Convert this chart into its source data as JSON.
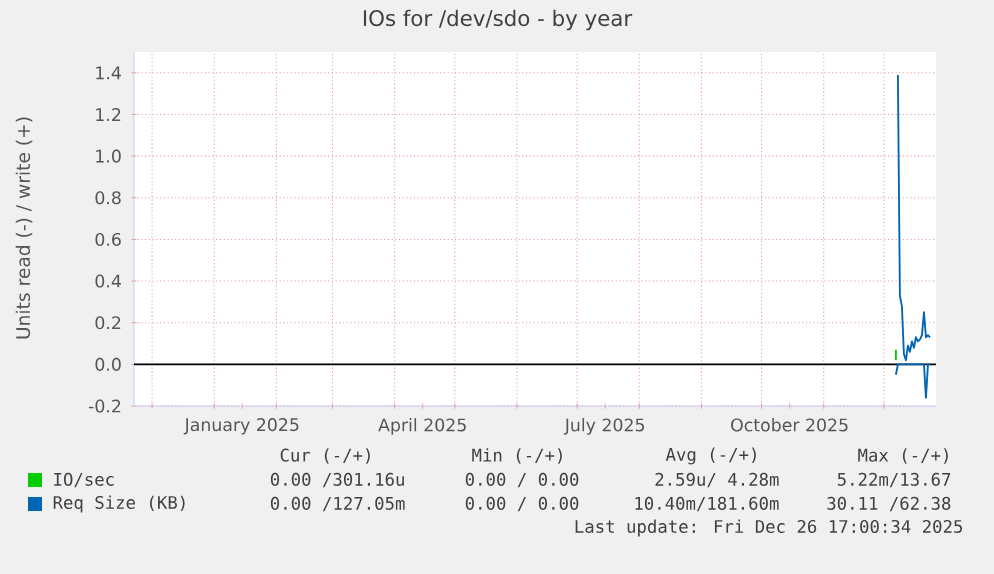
{
  "chart_data": {
    "type": "line",
    "title": "IOs for /dev/sdo - by year",
    "ylabel": "Units read (-) / write (+)",
    "xlim": [
      "2024-11-22",
      "2025-12-27"
    ],
    "xticks": [
      {
        "value": "2024-12-01",
        "label": null
      },
      {
        "value": "2025-01-01",
        "label": null
      },
      {
        "value": "2025-01-15",
        "label": "January 2025"
      },
      {
        "value": "2025-02-01",
        "label": null
      },
      {
        "value": "2025-03-01",
        "label": null
      },
      {
        "value": "2025-04-01",
        "label": null
      },
      {
        "value": "2025-04-15",
        "label": "April 2025"
      },
      {
        "value": "2025-05-01",
        "label": null
      },
      {
        "value": "2025-06-01",
        "label": null
      },
      {
        "value": "2025-07-01",
        "label": null
      },
      {
        "value": "2025-07-15",
        "label": "July 2025"
      },
      {
        "value": "2025-08-01",
        "label": null
      },
      {
        "value": "2025-09-01",
        "label": null
      },
      {
        "value": "2025-10-01",
        "label": null
      },
      {
        "value": "2025-10-15",
        "label": "October 2025"
      },
      {
        "value": "2025-11-01",
        "label": null
      },
      {
        "value": "2025-12-01",
        "label": null
      }
    ],
    "ylim": [
      -0.2,
      1.5
    ],
    "yticks": [
      {
        "value": -0.2,
        "label": "-0.2"
      },
      {
        "value": 0,
        "label": "0.0"
      },
      {
        "value": 0.2,
        "label": "0.2"
      },
      {
        "value": 0.4,
        "label": "0.4"
      },
      {
        "value": 0.6,
        "label": "0.6"
      },
      {
        "value": 0.8,
        "label": "0.8"
      },
      {
        "value": 1.0,
        "label": "1.0"
      },
      {
        "value": 1.2,
        "label": "1.2"
      },
      {
        "value": 1.4,
        "label": "1.4"
      }
    ],
    "grid": true,
    "legend": "bottom",
    "ref_lines": [
      {
        "axis": "y",
        "value": 0,
        "color": "#000000"
      }
    ],
    "series": [
      {
        "name": "IO/sec",
        "color": "#00cc00",
        "x": [
          "2025-12-07",
          "2025-12-07"
        ],
        "values": [
          0.02,
          0.07
        ]
      },
      {
        "name": "Req Size (KB)",
        "color": "#0066b3",
        "x": [
          "2025-12-08",
          "2025-12-09",
          "2025-12-10",
          "2025-12-11",
          "2025-12-12",
          "2025-12-13",
          "2025-12-14",
          "2025-12-15",
          "2025-12-16",
          "2025-12-17",
          "2025-12-18",
          "2025-12-19",
          "2025-12-20",
          "2025-12-21",
          "2025-12-22",
          "2025-12-23",
          "2025-12-24"
        ],
        "values": [
          1.39,
          0.33,
          0.28,
          0.05,
          0.02,
          0.09,
          0.06,
          0.11,
          0.08,
          0.13,
          0.11,
          0.12,
          0.14,
          0.25,
          0.13,
          0.14,
          0.13
        ]
      },
      {
        "color": "#0066b3",
        "x": [
          "2025-12-07",
          "2025-12-08",
          "2025-12-09",
          "2025-12-20",
          "2025-12-21",
          "2025-12-22",
          "2025-12-23",
          "2025-12-24"
        ],
        "values": [
          -0.05,
          0.0,
          0.0,
          0.0,
          0.0,
          -0.16,
          0.0,
          0.0
        ]
      }
    ],
    "annotations": [
      "Cur (-/+)",
      "Min (-/+)",
      "Avg (-/+)",
      "Max (-/+)",
      "0.00 /301.16u",
      "0.00 / 0.00",
      "2.59u/ 4.28m",
      "5.22m/13.67",
      "0.00 /127.05m",
      "0.00 / 0.00",
      "10.40m/181.60m",
      "30.11 /62.38",
      "Last update: Fri Dec 26 17:00:34 2025"
    ]
  }
}
